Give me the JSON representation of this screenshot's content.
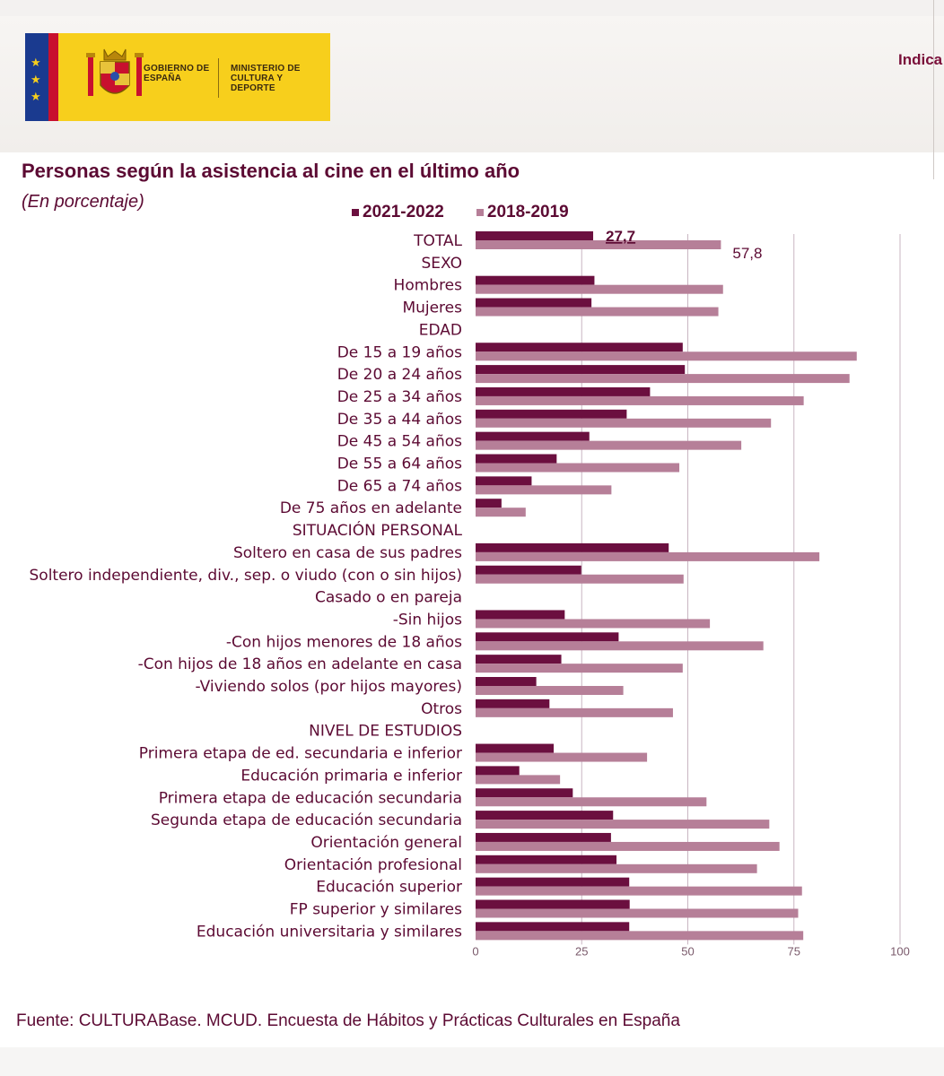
{
  "header": {
    "logo_gov": "GOBIERNO DE ESPAÑA",
    "logo_min": "MINISTERIO DE CULTURA Y DEPORTE",
    "nav_partial": "Indica"
  },
  "colors": {
    "series_2021": "#6b0f3f",
    "series_2018": "#b67f98",
    "text": "#5c0a33",
    "grid": "#c9b5c2"
  },
  "chart_data": {
    "type": "bar",
    "orientation": "horizontal",
    "title": "Personas según la asistencia al cine en el último año",
    "subtitle": "(En porcentaje)",
    "xlim": [
      0,
      100
    ],
    "xticks": [
      0,
      25,
      50,
      75,
      100
    ],
    "legend": [
      "2021-2022",
      "2018-2019"
    ],
    "categories": [
      "TOTAL",
      "SEXO",
      "Hombres",
      "Mujeres",
      "EDAD",
      "De 15 a 19 años",
      "De 20 a 24 años",
      "De 25 a 34 años",
      "De 35 a 44 años",
      "De 45 a 54 años",
      "De 55 a 64 años",
      "De 65 a 74 años",
      "De 75 años en adelante",
      "SITUACIÓN PERSONAL",
      "Soltero en casa de sus padres",
      "Soltero independiente, div., sep. o viudo (con o sin hijos)",
      "Casado o en pareja",
      "-Sin hijos",
      "-Con hijos menores de 18 años",
      "-Con hijos de 18 años en adelante en casa",
      "-Viviendo solos (por hijos mayores)",
      "Otros",
      "NIVEL DE ESTUDIOS",
      "Primera etapa de ed. secundaria e inferior",
      "Educación primaria e inferior",
      "Primera etapa de educación secundaria",
      "Segunda etapa de educación secundaria",
      "Orientación general",
      "Orientación profesional",
      "Educación superior",
      "FP superior y similares",
      "Educación universitaria y similares"
    ],
    "series": [
      {
        "name": "2021-2022",
        "values": [
          27.7,
          null,
          28.0,
          27.3,
          null,
          48.8,
          49.3,
          41.1,
          35.6,
          26.8,
          19.1,
          13.2,
          6.1,
          null,
          45.5,
          24.9,
          null,
          21.0,
          33.7,
          20.2,
          14.3,
          17.4,
          null,
          18.4,
          10.3,
          22.9,
          32.4,
          31.9,
          33.2,
          36.2,
          36.3,
          36.2
        ]
      },
      {
        "name": "2018-2019",
        "values": [
          57.8,
          null,
          58.3,
          57.2,
          null,
          89.8,
          88.1,
          77.3,
          69.6,
          62.6,
          48.0,
          32.0,
          11.8,
          null,
          81.0,
          49.0,
          null,
          55.2,
          67.8,
          48.8,
          34.8,
          46.5,
          null,
          40.4,
          19.9,
          54.4,
          69.2,
          71.6,
          66.3,
          76.9,
          76.0,
          77.2
        ]
      }
    ],
    "data_labels": {
      "total_2021": "27,7",
      "total_2018": "57,8"
    }
  },
  "footer": {
    "source": "Fuente: CULTURABase. MCUD. Encuesta de Hábitos y Prácticas Culturales en España"
  }
}
